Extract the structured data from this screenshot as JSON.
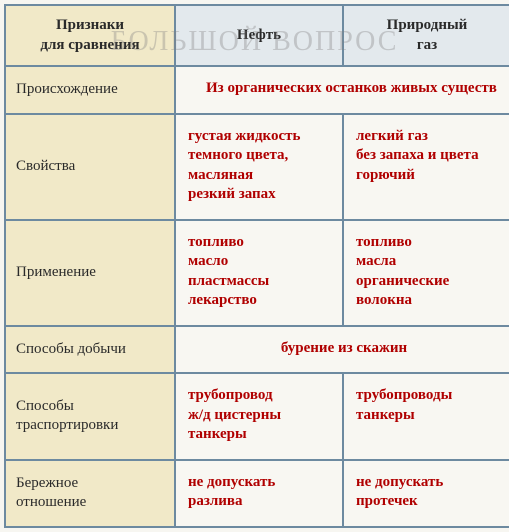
{
  "watermark": "БОЛЬШОЙ ВОПРОС",
  "colors": {
    "border": "#6d8aa0",
    "header_bg": "#e3e9ed",
    "label_bg": "#f1e9c8",
    "data_text": "#b00000",
    "label_text": "#2a2a2a",
    "page_bg": "#f8f7f2"
  },
  "header": {
    "col1": "Признаки\nдля сравнения",
    "col2": "Нефть",
    "col3": "Природный\nгаз"
  },
  "rows": [
    {
      "label": "Происхождение",
      "spanned": true,
      "merged_text": "Из органических останков живых существ"
    },
    {
      "label": "Свойства",
      "col2": "густая жидкость\nтемного цвета,\nмасляная\nрезкий запах",
      "col3": "легкий газ\nбез запаха и цвета\nгорючий"
    },
    {
      "label": "Применение",
      "col2": "топливо\nмасло\nпластмассы\nлекарство",
      "col3": "топливо\nмасла\nорганические\nволокна"
    },
    {
      "label": "Способы добычи",
      "spanned": true,
      "merged_text": "бурение из скажин"
    },
    {
      "label": "Способы\nтраспортировки",
      "col2": "трубопровод\nж/д цистерны\nтанкеры",
      "col3": "трубопроводы\nтанкеры"
    },
    {
      "label": "Бережное\nотношение",
      "col2": "не допускать\nразлива",
      "col3": "не допускать\nпротечек"
    }
  ]
}
